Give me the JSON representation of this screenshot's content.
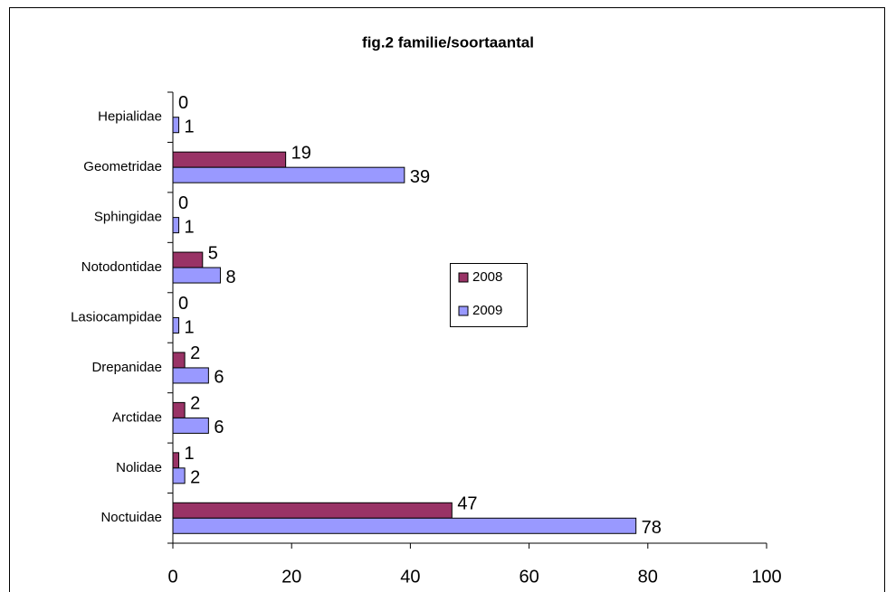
{
  "chart_data": {
    "type": "bar",
    "orientation": "horizontal",
    "title": "fig.2  familie/soortaantal",
    "categories": [
      "Hepialidae",
      "Geometridae",
      "Sphingidae",
      "Notodontidae",
      "Lasiocampidae",
      "Drepanidae",
      "Arctidae",
      "Nolidae",
      "Noctuidae"
    ],
    "series": [
      {
        "name": "2008",
        "color": "#993366",
        "values": [
          0,
          19,
          0,
          5,
          0,
          2,
          2,
          1,
          47
        ]
      },
      {
        "name": "2009",
        "color": "#9999ff",
        "values": [
          1,
          39,
          1,
          8,
          1,
          6,
          6,
          2,
          78
        ]
      }
    ],
    "xlim": [
      0,
      100
    ],
    "xticks": [
      0,
      20,
      40,
      60,
      80,
      100
    ],
    "legend": "right"
  }
}
